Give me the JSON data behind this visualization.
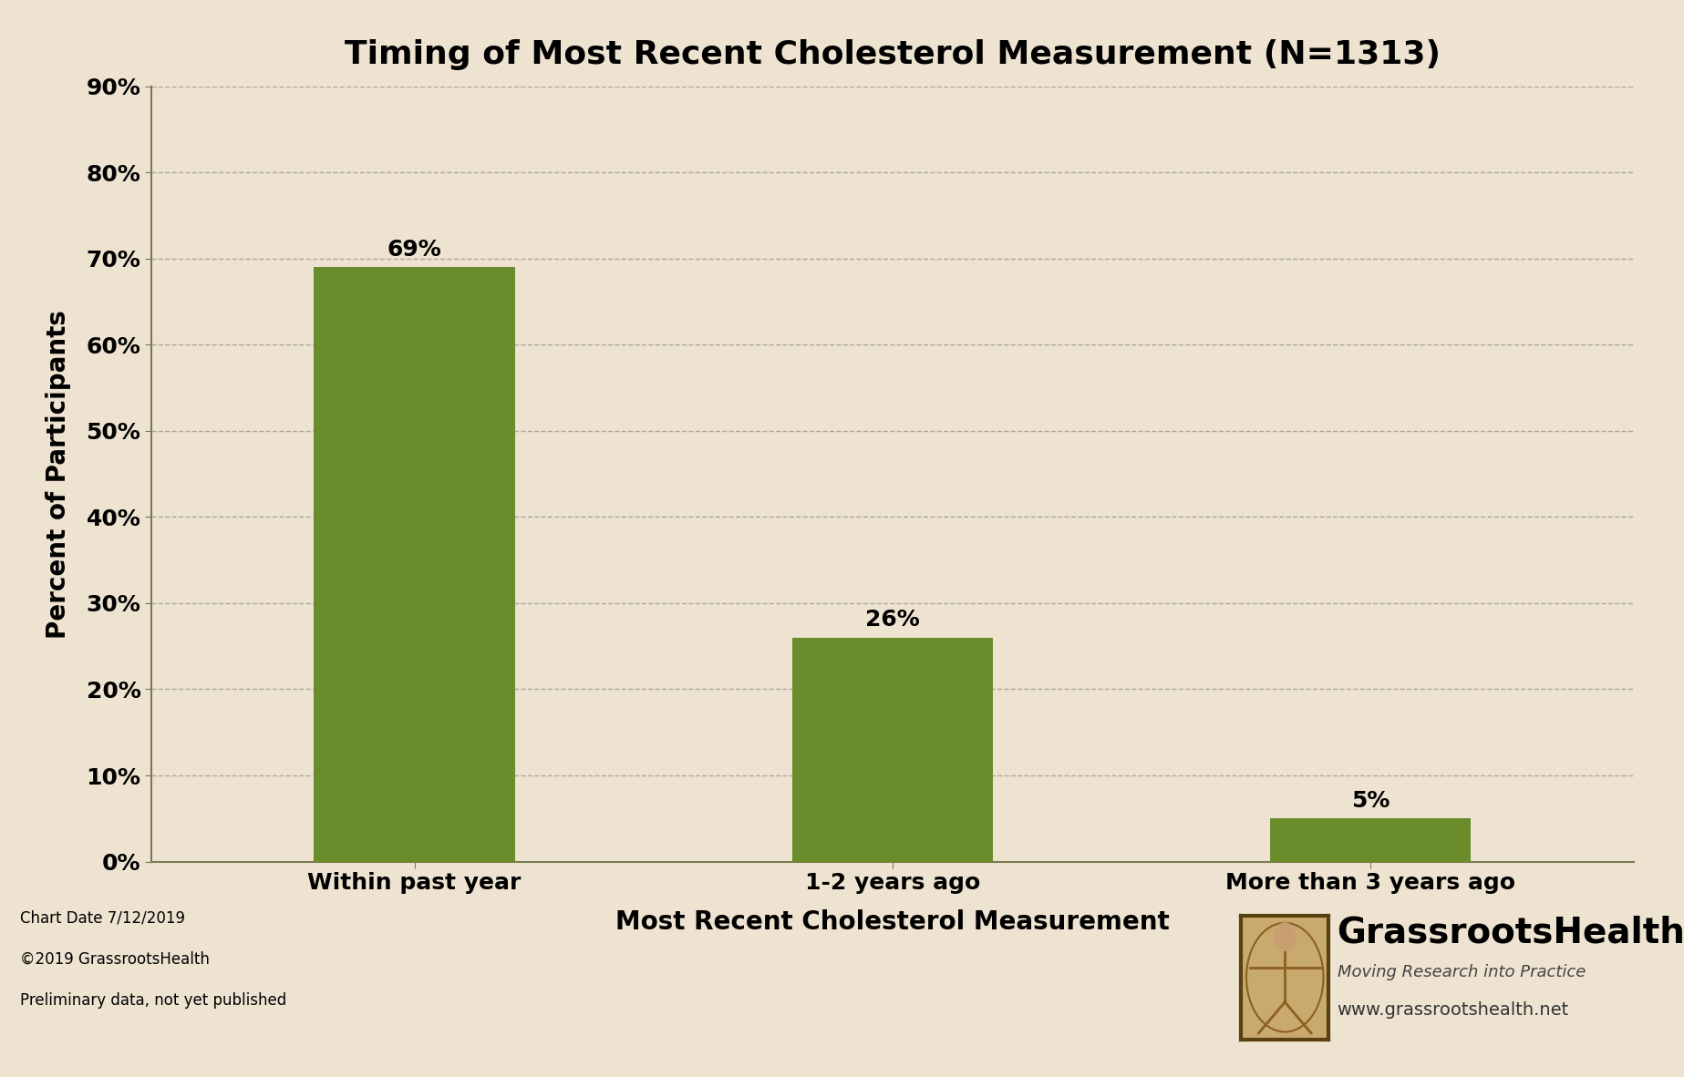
{
  "title": "Timing of Most Recent Cholesterol Measurement (N=1313)",
  "categories": [
    "Within past year",
    "1-2 years ago",
    "More than 3 years ago"
  ],
  "values": [
    69,
    26,
    5
  ],
  "bar_labels": [
    "69%",
    "26%",
    "5%"
  ],
  "bar_color": "#6b8c2a",
  "xlabel": "Most Recent Cholesterol Measurement",
  "ylabel": "Percent of Participants",
  "yticks": [
    0,
    10,
    20,
    30,
    40,
    50,
    60,
    70,
    80,
    90
  ],
  "ylim_max": 90,
  "background_color": "#ede3d0",
  "grid_color": "#999999",
  "spine_color": "#7a7a50",
  "title_fontsize": 26,
  "axis_label_fontsize": 20,
  "tick_fontsize": 18,
  "bar_label_fontsize": 18,
  "footer_left": [
    "Chart Date 7/12/2019",
    "©2019 GrassrootsHealth",
    "Preliminary data, not yet published"
  ],
  "footer_right_url": "www.grassrootshealth.net",
  "footer_right_name": "GrassrootsHealth",
  "footer_right_sub": "Moving Research into Practice",
  "logo_bg": "#c8a96e",
  "logo_border": "#5a4010"
}
